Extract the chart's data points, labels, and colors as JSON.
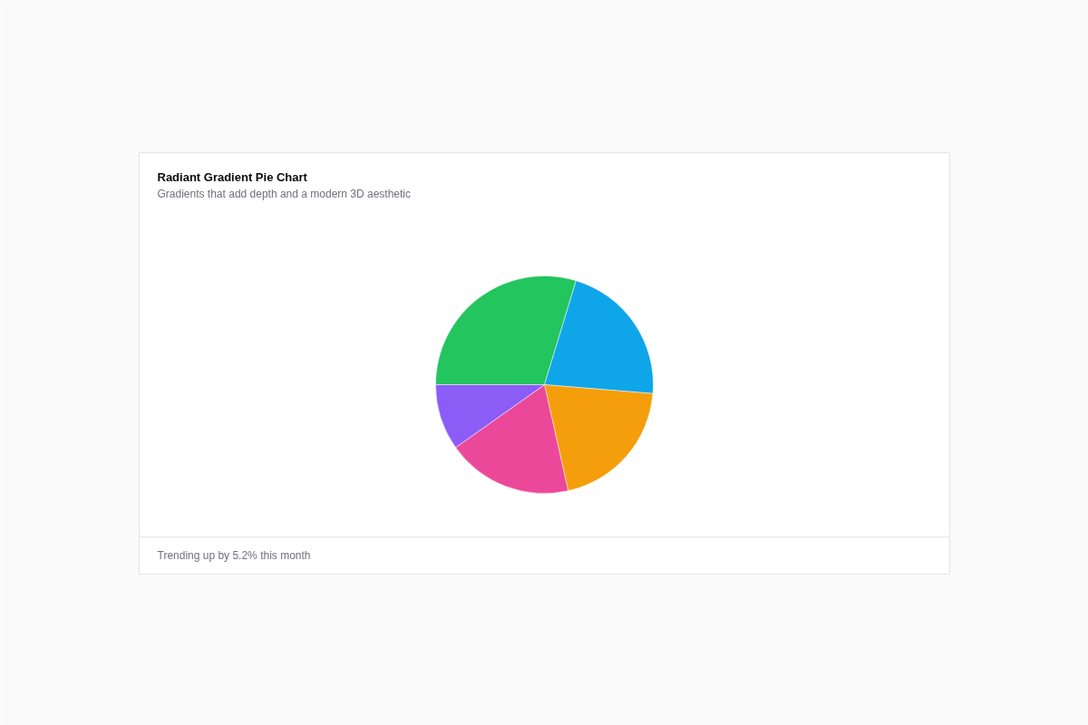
{
  "chart_data": {
    "type": "pie",
    "title": "Radiant Gradient Pie Chart",
    "subtitle": "Gradients that add depth and a modern 3D aesthetic",
    "categories": [
      null,
      null,
      null,
      null,
      null
    ],
    "values": [
      29.7,
      21.6,
      20.2,
      18.7,
      9.8
    ],
    "colors": [
      "#22c55e",
      "#0ea5e9",
      "#f59e0b",
      "#ec4899",
      "#8b5cf6"
    ],
    "annotations": [
      "Trending up by 5.2% this month"
    ]
  }
}
